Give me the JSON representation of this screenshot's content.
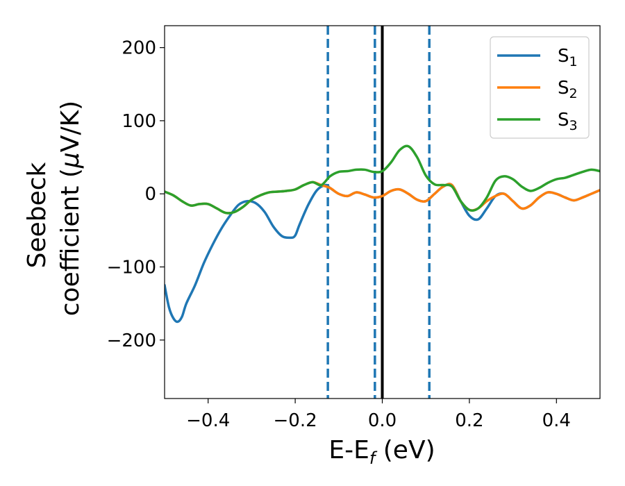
{
  "chart_data": {
    "type": "line",
    "xlabel_main": "E-E",
    "xlabel_sub": "f",
    "xlabel_unit": " (eV)",
    "ylabel_line1": "Seebeck",
    "ylabel_line2_prefix": "coefficient  (",
    "ylabel_mu": "μ",
    "ylabel_line2_suffix": "V/K)",
    "xlim": [
      -0.5,
      0.5
    ],
    "ylim": [
      -280,
      230
    ],
    "xticks": [
      -0.4,
      -0.2,
      0.0,
      0.2,
      0.4
    ],
    "xtick_labels": [
      "−0.4",
      "−0.2",
      "0.0",
      "0.2",
      "0.4"
    ],
    "yticks": [
      200,
      100,
      0,
      -100,
      -200
    ],
    "ytick_labels": [
      "200",
      "100",
      "0",
      "−100",
      "−200"
    ],
    "grid": false,
    "legend_placement": "top-right",
    "vlines": [
      {
        "x": -0.125,
        "style": "dashed",
        "color": "#1f77b4"
      },
      {
        "x": -0.017,
        "style": "dashed",
        "color": "#1f77b4"
      },
      {
        "x": 0.0,
        "style": "solid",
        "color": "#000000"
      },
      {
        "x": 0.108,
        "style": "dashed",
        "color": "#1f77b4"
      }
    ],
    "series": [
      {
        "name_main": "S",
        "name_sub": "1",
        "color": "#1f77b4",
        "x": [
          -0.5,
          -0.49,
          -0.48,
          -0.47,
          -0.46,
          -0.45,
          -0.43,
          -0.41,
          -0.39,
          -0.37,
          -0.35,
          -0.33,
          -0.31,
          -0.29,
          -0.27,
          -0.25,
          -0.23,
          -0.21,
          -0.2,
          -0.19,
          -0.17,
          -0.15,
          -0.13,
          -0.12,
          -0.1,
          -0.08,
          -0.06,
          -0.04,
          -0.02,
          0.0,
          0.02,
          0.04,
          0.06,
          0.08,
          0.1,
          0.12,
          0.14,
          0.16,
          0.18,
          0.2,
          0.22,
          0.24,
          0.26,
          0.28,
          0.3,
          0.32,
          0.34,
          0.36,
          0.38,
          0.4,
          0.42,
          0.44,
          0.46,
          0.48,
          0.5
        ],
        "y": [
          -125,
          -155,
          -170,
          -175,
          -168,
          -150,
          -125,
          -95,
          -70,
          -48,
          -30,
          -15,
          -10,
          -13,
          -25,
          -45,
          -58,
          -60,
          -57,
          -42,
          -15,
          5,
          12,
          8,
          0,
          -3,
          2,
          -1,
          -5,
          -3,
          4,
          6,
          0,
          -8,
          -10,
          0,
          10,
          12,
          -10,
          -30,
          -35,
          -20,
          -3,
          0,
          -10,
          -20,
          -16,
          -5,
          2,
          0,
          -5,
          -9,
          -5,
          0,
          5
        ]
      },
      {
        "name_main": "S",
        "name_sub": "2",
        "color": "#ff7f0e",
        "x": [
          -0.5,
          -0.48,
          -0.46,
          -0.44,
          -0.42,
          -0.4,
          -0.38,
          -0.36,
          -0.34,
          -0.32,
          -0.3,
          -0.28,
          -0.26,
          -0.24,
          -0.22,
          -0.2,
          -0.18,
          -0.16,
          -0.14,
          -0.12,
          -0.1,
          -0.08,
          -0.06,
          -0.04,
          -0.02,
          0.0,
          0.02,
          0.04,
          0.06,
          0.08,
          0.1,
          0.12,
          0.14,
          0.16,
          0.18,
          0.2,
          0.22,
          0.24,
          0.26,
          0.28,
          0.3,
          0.32,
          0.34,
          0.36,
          0.38,
          0.4,
          0.42,
          0.44,
          0.46,
          0.48,
          0.5
        ],
        "y": [
          3,
          -2,
          -10,
          -16,
          -14,
          -14,
          -20,
          -26,
          -25,
          -18,
          -8,
          -2,
          2,
          3,
          4,
          6,
          12,
          16,
          12,
          8,
          0,
          -3,
          2,
          -1,
          -5,
          -3,
          4,
          6,
          0,
          -8,
          -10,
          0,
          10,
          12,
          -10,
          -22,
          -20,
          -10,
          -3,
          0,
          -10,
          -20,
          -16,
          -5,
          2,
          0,
          -5,
          -9,
          -5,
          0,
          5
        ]
      },
      {
        "name_main": "S",
        "name_sub": "3",
        "color": "#2ca02c",
        "x": [
          -0.5,
          -0.48,
          -0.46,
          -0.44,
          -0.42,
          -0.4,
          -0.38,
          -0.36,
          -0.34,
          -0.32,
          -0.3,
          -0.28,
          -0.26,
          -0.24,
          -0.22,
          -0.2,
          -0.18,
          -0.16,
          -0.14,
          -0.12,
          -0.1,
          -0.08,
          -0.06,
          -0.04,
          -0.02,
          0.0,
          0.02,
          0.04,
          0.06,
          0.08,
          0.1,
          0.12,
          0.14,
          0.16,
          0.18,
          0.2,
          0.22,
          0.24,
          0.26,
          0.28,
          0.3,
          0.32,
          0.34,
          0.36,
          0.38,
          0.4,
          0.42,
          0.44,
          0.46,
          0.48,
          0.5
        ],
        "y": [
          3,
          -2,
          -10,
          -16,
          -14,
          -14,
          -20,
          -26,
          -25,
          -18,
          -8,
          -2,
          2,
          3,
          4,
          6,
          12,
          16,
          12,
          24,
          30,
          31,
          33,
          33,
          30,
          31,
          43,
          60,
          65,
          50,
          25,
          13,
          12,
          10,
          -10,
          -22,
          -20,
          -5,
          18,
          24,
          20,
          10,
          4,
          8,
          15,
          20,
          22,
          26,
          30,
          33,
          31
        ]
      }
    ]
  }
}
